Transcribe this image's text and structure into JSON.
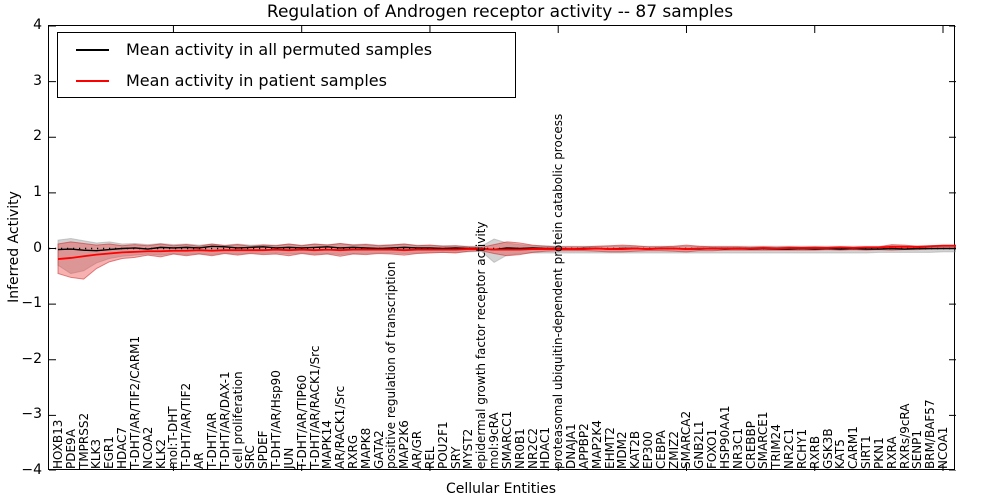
{
  "title": "Regulation of Androgen receptor activity -- 87 samples",
  "axes": {
    "ylabel": "Inferred Activity",
    "xlabel": "Cellular Entities",
    "ylim": [
      -4,
      4
    ],
    "yticks": [
      4,
      3,
      2,
      1,
      0,
      -1,
      -2,
      -3,
      -4
    ],
    "top_bottom_tick_every": 10,
    "grid": false
  },
  "legend": {
    "position": "upper left",
    "entries": [
      {
        "label": "Mean activity in all permuted samples",
        "color": "#000000"
      },
      {
        "label": "Mean activity in patient samples",
        "color": "#ff0000"
      }
    ]
  },
  "colors": {
    "permuted_line": "#000000",
    "patient_line": "#ff0000",
    "permuted_band_fill": "rgba(130,130,130,0.35)",
    "patient_band_fill": "rgba(235,60,60,0.40)",
    "patient_band_edge": "rgba(200,40,40,0.55)",
    "zero_line": "#000000"
  },
  "chart_data": {
    "type": "line",
    "title": "Regulation of Androgen receptor activity -- 87 samples",
    "xlabel": "Cellular Entities",
    "ylabel": "Inferred Activity",
    "ylim": [
      -4,
      4
    ],
    "legend_position": "upper left",
    "categories": [
      "HOXB13",
      "PDE9A",
      "TMPRSS2",
      "KLK3",
      "EGR1",
      "HDAC7",
      "T-DHT/AR/TIF2/CARM1",
      "NCOA2",
      "KLK2",
      "mol:T-DHT",
      "T-DHT/AR/TIF2",
      "AR",
      "T-DHT/AR",
      "T-DHT/AR/DAX-1",
      "cell proliferation",
      "SRC",
      "SPDEF",
      "T-DHT/AR/Hsp90",
      "JUN",
      "T-DHT/AR/TIP60",
      "T-DHT/AR/RACK1/Src",
      "MAPK14",
      "AR/RACK1/Src",
      "RXRG",
      "MAPK8",
      "GATA2",
      "positive regulation of transcription",
      "MAP2K6",
      "AR/GR",
      "REL",
      "POU2F1",
      "SRY",
      "MYST2",
      "epidermal growth factor receptor activity",
      "mol:9cRA",
      "SMARCC1",
      "NR0B1",
      "NR2C2",
      "HDAC1",
      "proteasomal ubiquitin-dependent protein catabolic process",
      "DNAJA1",
      "APPBP2",
      "MAP2K4",
      "EHMT2",
      "MDM2",
      "KAT2B",
      "EP300",
      "CEBPA",
      "ZMIZ2",
      "SMARCA2",
      "GNB2L1",
      "FOXO1",
      "HSP90AA1",
      "NR3C1",
      "CREBBP",
      "SMARCE1",
      "TRIM24",
      "NR2C1",
      "RCHY1",
      "RXRB",
      "GSK3B",
      "KAT5",
      "CARM1",
      "SIRT1",
      "PKN1",
      "RXRA",
      "RXRs/9cRA",
      "SENP1",
      "BRM/BAF57",
      "NCOA1"
    ],
    "series": [
      {
        "name": "Mean activity in all permuted samples",
        "color": "#000000",
        "values": [
          -0.02,
          -0.01,
          -0.03,
          -0.04,
          -0.02,
          0.0,
          0.01,
          -0.01,
          0.02,
          0.01,
          0.02,
          0.01,
          0.04,
          0.03,
          0.01,
          0.02,
          0.03,
          0.01,
          0.02,
          0.01,
          0.02,
          0.03,
          0.01,
          0.02,
          0.01,
          0.0,
          0.01,
          0.02,
          0.01,
          0.01,
          0.0,
          0.01,
          0.0,
          0.0,
          -0.02,
          0.01,
          0.0,
          0.01,
          0.0,
          0.0,
          -0.01,
          0.0,
          0.0,
          -0.01,
          0.0,
          0.0,
          -0.01,
          0.0,
          0.0,
          -0.01,
          -0.01,
          0.0,
          -0.01,
          0.0,
          -0.01,
          0.0,
          -0.01,
          -0.01,
          0.0,
          -0.01,
          0.0,
          -0.01,
          0.0,
          -0.01,
          -0.01,
          0.0,
          -0.01,
          0.0,
          0.0,
          0.0
        ]
      },
      {
        "name": "Mean activity in patient samples",
        "color": "#ff0000",
        "values": [
          -0.19,
          -0.17,
          -0.14,
          -0.11,
          -0.09,
          -0.07,
          -0.06,
          -0.05,
          -0.05,
          -0.04,
          -0.04,
          -0.03,
          -0.04,
          -0.03,
          -0.03,
          -0.03,
          -0.03,
          -0.02,
          -0.03,
          -0.02,
          -0.03,
          -0.02,
          -0.03,
          -0.02,
          -0.02,
          -0.02,
          -0.02,
          -0.03,
          -0.02,
          -0.02,
          -0.02,
          -0.02,
          -0.01,
          -0.01,
          -0.02,
          -0.02,
          -0.02,
          -0.01,
          -0.01,
          -0.01,
          -0.01,
          -0.01,
          0.0,
          -0.01,
          -0.01,
          0.0,
          -0.01,
          0.0,
          0.0,
          -0.01,
          0.0,
          0.0,
          0.0,
          0.0,
          0.0,
          0.01,
          0.0,
          0.01,
          0.01,
          0.01,
          0.01,
          0.02,
          0.01,
          0.02,
          0.02,
          0.03,
          0.03,
          0.03,
          0.04,
          0.05
        ]
      }
    ],
    "bands": [
      {
        "name": "permuted samples range",
        "fill": "rgba(130,130,130,0.35)",
        "edge": "rgba(150,150,150,0.45)",
        "upper": [
          0.15,
          0.18,
          0.14,
          0.1,
          0.12,
          0.08,
          0.09,
          0.07,
          0.09,
          0.07,
          0.08,
          0.06,
          0.08,
          0.06,
          0.08,
          0.06,
          0.07,
          0.06,
          0.08,
          0.06,
          0.08,
          0.07,
          0.09,
          0.07,
          0.08,
          0.06,
          0.07,
          0.08,
          0.06,
          0.06,
          0.05,
          0.05,
          0.04,
          0.04,
          0.17,
          0.1,
          0.07,
          0.05,
          0.05,
          0.04,
          0.04,
          0.04,
          0.04,
          0.04,
          0.04,
          0.04,
          0.04,
          0.04,
          0.04,
          0.04,
          0.04,
          0.04,
          0.04,
          0.04,
          0.04,
          0.04,
          0.04,
          0.04,
          0.04,
          0.04,
          0.04,
          0.04,
          0.04,
          0.04,
          0.04,
          0.05,
          0.04,
          0.04,
          0.04,
          0.04
        ],
        "lower": [
          -0.3,
          -0.45,
          -0.4,
          -0.26,
          -0.18,
          -0.14,
          -0.12,
          -0.1,
          -0.12,
          -0.09,
          -0.11,
          -0.09,
          -0.11,
          -0.08,
          -0.1,
          -0.08,
          -0.09,
          -0.08,
          -0.1,
          -0.08,
          -0.1,
          -0.09,
          -0.11,
          -0.09,
          -0.09,
          -0.08,
          -0.08,
          -0.09,
          -0.08,
          -0.07,
          -0.07,
          -0.07,
          -0.06,
          -0.05,
          -0.25,
          -0.12,
          -0.09,
          -0.08,
          -0.08,
          -0.08,
          -0.08,
          -0.08,
          -0.08,
          -0.08,
          -0.08,
          -0.08,
          -0.08,
          -0.08,
          -0.08,
          -0.08,
          -0.08,
          -0.08,
          -0.08,
          -0.08,
          -0.08,
          -0.08,
          -0.08,
          -0.08,
          -0.08,
          -0.08,
          -0.08,
          -0.08,
          -0.08,
          -0.08,
          -0.07,
          -0.07,
          -0.07,
          -0.07,
          -0.07,
          -0.06
        ]
      },
      {
        "name": "patient samples range",
        "fill": "rgba(235,60,60,0.40)",
        "edge": "rgba(200,40,40,0.55)",
        "upper": [
          0.08,
          0.12,
          0.09,
          0.06,
          0.08,
          0.05,
          0.07,
          0.05,
          0.08,
          0.05,
          0.07,
          0.04,
          0.08,
          0.05,
          0.07,
          0.04,
          0.06,
          0.05,
          0.08,
          0.05,
          0.08,
          0.06,
          0.09,
          0.06,
          0.07,
          0.05,
          0.06,
          0.08,
          0.05,
          0.06,
          0.04,
          0.05,
          0.03,
          0.02,
          0.07,
          0.12,
          0.1,
          0.06,
          0.04,
          0.03,
          0.03,
          0.03,
          0.04,
          0.05,
          0.06,
          0.05,
          0.03,
          0.03,
          0.04,
          0.06,
          0.04,
          0.03,
          0.03,
          0.03,
          0.02,
          0.03,
          0.02,
          0.03,
          0.02,
          0.03,
          0.02,
          0.03,
          0.02,
          0.03,
          0.03,
          0.07,
          0.06,
          0.04,
          0.05,
          0.06
        ],
        "lower": [
          -0.45,
          -0.52,
          -0.55,
          -0.36,
          -0.24,
          -0.18,
          -0.16,
          -0.12,
          -0.15,
          -0.1,
          -0.13,
          -0.1,
          -0.13,
          -0.09,
          -0.12,
          -0.09,
          -0.11,
          -0.1,
          -0.13,
          -0.09,
          -0.12,
          -0.1,
          -0.14,
          -0.1,
          -0.11,
          -0.09,
          -0.1,
          -0.12,
          -0.09,
          -0.08,
          -0.07,
          -0.08,
          -0.05,
          -0.04,
          -0.09,
          -0.13,
          -0.11,
          -0.07,
          -0.05,
          -0.04,
          -0.04,
          -0.04,
          -0.05,
          -0.06,
          -0.06,
          -0.05,
          -0.04,
          -0.04,
          -0.05,
          -0.06,
          -0.04,
          -0.04,
          -0.03,
          -0.03,
          -0.03,
          -0.03,
          -0.03,
          -0.03,
          -0.03,
          -0.03,
          -0.02,
          -0.03,
          -0.02,
          -0.03,
          -0.02,
          -0.03,
          -0.02,
          -0.02,
          -0.01,
          0.0
        ]
      }
    ],
    "zero_line": {
      "style": "dotted",
      "color": "#000000",
      "y": 0
    }
  }
}
